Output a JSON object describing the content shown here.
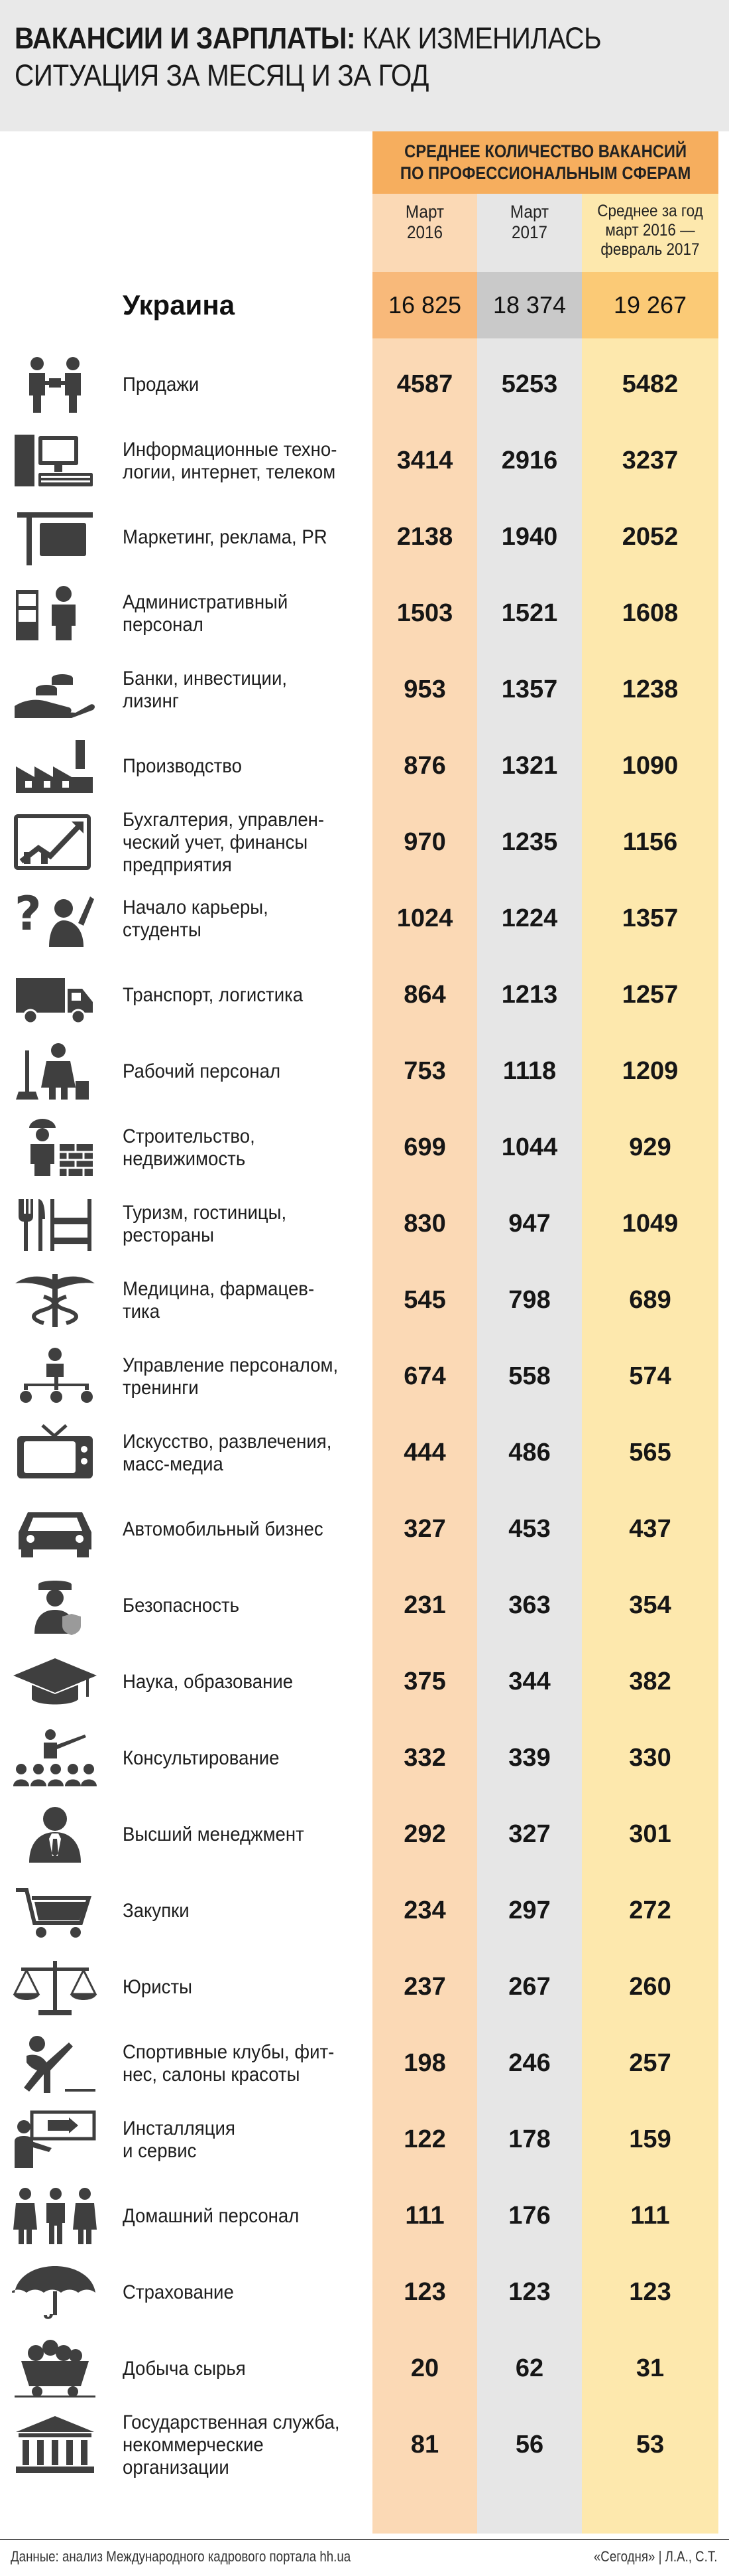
{
  "title": {
    "bold": "ВАКАНСИИ И ЗАРПЛАТЫ:",
    "rest": " КАК ИЗМЕНИЛАСЬ СИТУАЦИЯ ЗА МЕСЯЦ И ЗА ГОД"
  },
  "header": {
    "band": "СРЕДНЕЕ КОЛИЧЕСТВО ВАКАНСИЙ\nПО ПРОФЕССИОНАЛЬНЫМ СФЕРАМ",
    "columns": [
      "Март\n2016",
      "Март\n2017",
      "Среднее за год\nмарт 2016 —\nфевраль 2017"
    ]
  },
  "total": {
    "label": "Украина",
    "values": [
      "16 825",
      "18 374",
      "19 267"
    ]
  },
  "footer": {
    "source": "Данные: анализ Международного кадрового портала hh.ua",
    "credit": "«Сегодня» | Л.А., С.Т."
  },
  "colors": {
    "header_band": "#f6ae5e",
    "col1": "#fbd9b5",
    "col2": "#e6e6e6",
    "col3": "#fde8ad",
    "icon": "#3f3f3f"
  },
  "chart_data": {
    "type": "table",
    "columns": [
      "Март 2016",
      "Март 2017",
      "Среднее за год март 2016 — февраль 2017"
    ],
    "rows": [
      {
        "label": "Продажи",
        "icon": "handshake-people-icon",
        "values": [
          4587,
          5253,
          5482
        ]
      },
      {
        "label": "Информационные техно-\nлогии, интернет, телеком",
        "icon": "computer-icon",
        "values": [
          3414,
          2916,
          3237
        ]
      },
      {
        "label": "Маркетинг, реклама, PR",
        "icon": "signboard-icon",
        "values": [
          2138,
          1940,
          2052
        ]
      },
      {
        "label": "Административный\nперсонал",
        "icon": "office-worker-icon",
        "values": [
          1503,
          1521,
          1608
        ]
      },
      {
        "label": "Банки, инвестиции,\nлизинг",
        "icon": "hand-coins-icon",
        "values": [
          953,
          1357,
          1238
        ]
      },
      {
        "label": "Производство",
        "icon": "factory-icon",
        "values": [
          876,
          1321,
          1090
        ]
      },
      {
        "label": "Бухгалтерия, управлен-\nческий учет, финансы\nпредприятия",
        "icon": "growth-chart-icon",
        "values": [
          970,
          1235,
          1156
        ]
      },
      {
        "label": "Начало карьеры,\nстуденты",
        "icon": "question-student-icon",
        "values": [
          1024,
          1224,
          1357
        ]
      },
      {
        "label": "Транспорт, логистика",
        "icon": "truck-icon",
        "values": [
          864,
          1213,
          1257
        ]
      },
      {
        "label": "Рабочий персонал",
        "icon": "cleaner-icon",
        "values": [
          753,
          1118,
          1209
        ]
      },
      {
        "label": "Строительство,\nнедвижимость",
        "icon": "builder-icon",
        "values": [
          699,
          1044,
          929
        ]
      },
      {
        "label": "Туризм, гостиницы,\nрестораны",
        "icon": "cutlery-bed-icon",
        "values": [
          830,
          947,
          1049
        ]
      },
      {
        "label": "Медицина, фармацев-\nтика",
        "icon": "caduceus-icon",
        "values": [
          545,
          798,
          689
        ]
      },
      {
        "label": "Управление персоналом,\nтренинги",
        "icon": "org-chart-icon",
        "values": [
          674,
          558,
          574
        ]
      },
      {
        "label": "Искусство, развлечения,\nмасс-медиа",
        "icon": "tv-icon",
        "values": [
          444,
          486,
          565
        ]
      },
      {
        "label": "Автомобильный бизнес",
        "icon": "car-icon",
        "values": [
          327,
          453,
          437
        ]
      },
      {
        "label": "Безопасность",
        "icon": "guard-icon",
        "values": [
          231,
          363,
          354
        ]
      },
      {
        "label": "Наука, образование",
        "icon": "graduation-cap-icon",
        "values": [
          375,
          344,
          382
        ]
      },
      {
        "label": "Консультирование",
        "icon": "presenter-audience-icon",
        "values": [
          332,
          339,
          330
        ]
      },
      {
        "label": "Высший менеджмент",
        "icon": "manager-icon",
        "values": [
          292,
          327,
          301
        ]
      },
      {
        "label": "Закупки",
        "icon": "shopping-cart-icon",
        "values": [
          234,
          297,
          272
        ]
      },
      {
        "label": "Юристы",
        "icon": "scales-icon",
        "values": [
          237,
          267,
          260
        ]
      },
      {
        "label": "Спортивные клубы, фит-\nнес, салоны красоты",
        "icon": "stretching-person-icon",
        "values": [
          198,
          246,
          257
        ]
      },
      {
        "label": "Инсталляция\nи сервис",
        "icon": "installer-icon",
        "values": [
          122,
          178,
          159
        ]
      },
      {
        "label": "Домашний персонал",
        "icon": "household-staff-icon",
        "values": [
          111,
          176,
          111
        ]
      },
      {
        "label": "Страхование",
        "icon": "umbrella-icon",
        "values": [
          123,
          123,
          123
        ]
      },
      {
        "label": "Добыча сырья",
        "icon": "mine-cart-icon",
        "values": [
          20,
          62,
          31
        ]
      },
      {
        "label": "Государственная служба,\nнекоммерческие\nорганизации",
        "icon": "government-building-icon",
        "values": [
          81,
          56,
          53
        ]
      }
    ]
  }
}
